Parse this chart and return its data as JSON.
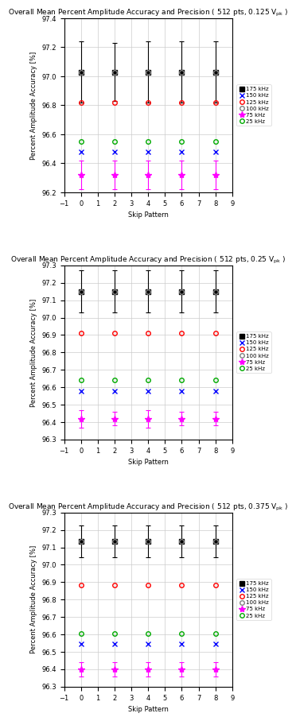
{
  "subplots": [
    {
      "title": "Overall Mean Percent Amplitude Accuracy and Precision ( 512 pts, 0.125 V",
      "title_sub": "pk",
      "title_suffix": " )",
      "ylim": [
        96.2,
        97.4
      ],
      "yticks": [
        96.2,
        96.4,
        96.6,
        96.8,
        97.0,
        97.2,
        97.4
      ],
      "series": [
        {
          "label": "175 kHz",
          "color": "#000000",
          "marker": "s",
          "markerfacecolor": "#000000",
          "x": [
            0,
            2,
            4,
            6,
            8
          ],
          "y": [
            97.03,
            97.03,
            97.03,
            97.03,
            97.03
          ],
          "yerr_low": [
            0.21,
            0.2,
            0.21,
            0.21,
            0.21
          ],
          "yerr_high": [
            0.21,
            0.2,
            0.21,
            0.21,
            0.21
          ]
        },
        {
          "label": "150 kHz",
          "color": "#0000FF",
          "marker": "x",
          "markerfacecolor": "#0000FF",
          "x": [
            0,
            2,
            4,
            6,
            8
          ],
          "y": [
            96.48,
            96.48,
            96.48,
            96.48,
            96.48
          ],
          "yerr_low": [
            0.0,
            0.0,
            0.0,
            0.0,
            0.0
          ],
          "yerr_high": [
            0.0,
            0.0,
            0.0,
            0.0,
            0.0
          ]
        },
        {
          "label": "125 kHz",
          "color": "#FF0000",
          "marker": "o",
          "markerfacecolor": "none",
          "x": [
            0,
            2,
            4,
            6,
            8
          ],
          "y": [
            96.82,
            96.82,
            96.82,
            96.82,
            96.82
          ],
          "yerr_low": [
            0.0,
            0.0,
            0.0,
            0.0,
            0.0
          ],
          "yerr_high": [
            0.0,
            0.0,
            0.0,
            0.0,
            0.0
          ]
        },
        {
          "label": "100 kHz",
          "color": "#808080",
          "marker": "o",
          "markerfacecolor": "none",
          "x": [
            0,
            2,
            4,
            6,
            8
          ],
          "y": [
            97.03,
            97.03,
            97.03,
            97.03,
            97.03
          ],
          "yerr_low": [
            0.0,
            0.0,
            0.0,
            0.0,
            0.0
          ],
          "yerr_high": [
            0.0,
            0.0,
            0.0,
            0.0,
            0.0
          ]
        },
        {
          "label": "75 kHz",
          "color": "#FF00FF",
          "marker": "*",
          "markerfacecolor": "#FF00FF",
          "x": [
            0,
            2,
            4,
            6,
            8
          ],
          "y": [
            96.32,
            96.32,
            96.32,
            96.32,
            96.32
          ],
          "yerr_low": [
            0.1,
            0.1,
            0.1,
            0.1,
            0.1
          ],
          "yerr_high": [
            0.1,
            0.1,
            0.1,
            0.1,
            0.1
          ]
        },
        {
          "label": "25 kHz",
          "color": "#00AA00",
          "marker": "o",
          "markerfacecolor": "none",
          "x": [
            0,
            2,
            4,
            6,
            8
          ],
          "y": [
            96.55,
            96.55,
            96.55,
            96.55,
            96.55
          ],
          "yerr_low": [
            0.0,
            0.0,
            0.0,
            0.0,
            0.0
          ],
          "yerr_high": [
            0.0,
            0.0,
            0.0,
            0.0,
            0.0
          ]
        }
      ]
    },
    {
      "title": "Overall Mean Percent Amplitude Accuracy and Precision ( 512 pts, 0.25 V",
      "title_sub": "pk",
      "title_suffix": " )",
      "ylim": [
        96.3,
        97.3
      ],
      "yticks": [
        96.3,
        96.4,
        96.5,
        96.6,
        96.7,
        96.8,
        96.9,
        97.0,
        97.1,
        97.2,
        97.3
      ],
      "series": [
        {
          "label": "175 kHz",
          "color": "#000000",
          "marker": "s",
          "markerfacecolor": "#000000",
          "x": [
            0,
            2,
            4,
            6,
            8
          ],
          "y": [
            97.15,
            97.15,
            97.15,
            97.15,
            97.15
          ],
          "yerr_low": [
            0.12,
            0.12,
            0.12,
            0.12,
            0.12
          ],
          "yerr_high": [
            0.12,
            0.12,
            0.12,
            0.12,
            0.12
          ]
        },
        {
          "label": "150 kHz",
          "color": "#0000FF",
          "marker": "x",
          "markerfacecolor": "#0000FF",
          "x": [
            0,
            2,
            4,
            6,
            8
          ],
          "y": [
            96.58,
            96.58,
            96.58,
            96.58,
            96.58
          ],
          "yerr_low": [
            0.0,
            0.0,
            0.0,
            0.0,
            0.0
          ],
          "yerr_high": [
            0.0,
            0.0,
            0.0,
            0.0,
            0.0
          ]
        },
        {
          "label": "125 kHz",
          "color": "#FF0000",
          "marker": "o",
          "markerfacecolor": "none",
          "x": [
            0,
            2,
            4,
            6,
            8
          ],
          "y": [
            96.91,
            96.91,
            96.91,
            96.91,
            96.91
          ],
          "yerr_low": [
            0.0,
            0.0,
            0.0,
            0.0,
            0.0
          ],
          "yerr_high": [
            0.0,
            0.0,
            0.0,
            0.0,
            0.0
          ]
        },
        {
          "label": "100 kHz",
          "color": "#808080",
          "marker": "o",
          "markerfacecolor": "none",
          "x": [
            0,
            2,
            4,
            6,
            8
          ],
          "y": [
            97.15,
            97.15,
            97.15,
            97.15,
            97.15
          ],
          "yerr_low": [
            0.0,
            0.0,
            0.0,
            0.0,
            0.0
          ],
          "yerr_high": [
            0.0,
            0.0,
            0.0,
            0.0,
            0.0
          ]
        },
        {
          "label": "75 kHz",
          "color": "#FF00FF",
          "marker": "*",
          "markerfacecolor": "#FF00FF",
          "x": [
            0,
            2,
            4,
            6,
            8
          ],
          "y": [
            96.42,
            96.42,
            96.42,
            96.42,
            96.42
          ],
          "yerr_low": [
            0.05,
            0.04,
            0.05,
            0.04,
            0.04
          ],
          "yerr_high": [
            0.05,
            0.04,
            0.05,
            0.04,
            0.04
          ]
        },
        {
          "label": "25 kHz",
          "color": "#00AA00",
          "marker": "o",
          "markerfacecolor": "none",
          "x": [
            0,
            2,
            4,
            6,
            8
          ],
          "y": [
            96.64,
            96.64,
            96.64,
            96.64,
            96.64
          ],
          "yerr_low": [
            0.0,
            0.0,
            0.0,
            0.0,
            0.0
          ],
          "yerr_high": [
            0.0,
            0.0,
            0.0,
            0.0,
            0.0
          ]
        }
      ]
    },
    {
      "title": "Overall Mean Percent Amplitude Accuracy and Precision ( 512 pts, 0.375 V",
      "title_sub": "pk",
      "title_suffix": " )",
      "ylim": [
        96.3,
        97.3
      ],
      "yticks": [
        96.3,
        96.4,
        96.5,
        96.6,
        96.7,
        96.8,
        96.9,
        97.0,
        97.1,
        97.2,
        97.3
      ],
      "series": [
        {
          "label": "175 kHz",
          "color": "#000000",
          "marker": "s",
          "markerfacecolor": "#000000",
          "x": [
            0,
            2,
            4,
            6,
            8
          ],
          "y": [
            97.135,
            97.135,
            97.135,
            97.135,
            97.135
          ],
          "yerr_low": [
            0.09,
            0.09,
            0.09,
            0.09,
            0.09
          ],
          "yerr_high": [
            0.09,
            0.09,
            0.09,
            0.09,
            0.09
          ]
        },
        {
          "label": "150 kHz",
          "color": "#0000FF",
          "marker": "x",
          "markerfacecolor": "#0000FF",
          "x": [
            0,
            2,
            4,
            6,
            8
          ],
          "y": [
            96.545,
            96.545,
            96.545,
            96.545,
            96.545
          ],
          "yerr_low": [
            0.0,
            0.0,
            0.0,
            0.0,
            0.0
          ],
          "yerr_high": [
            0.0,
            0.0,
            0.0,
            0.0,
            0.0
          ]
        },
        {
          "label": "125 kHz",
          "color": "#FF0000",
          "marker": "o",
          "markerfacecolor": "none",
          "x": [
            0,
            2,
            4,
            6,
            8
          ],
          "y": [
            96.885,
            96.885,
            96.885,
            96.885,
            96.885
          ],
          "yerr_low": [
            0.0,
            0.0,
            0.0,
            0.0,
            0.0
          ],
          "yerr_high": [
            0.0,
            0.0,
            0.0,
            0.0,
            0.0
          ]
        },
        {
          "label": "100 kHz",
          "color": "#808080",
          "marker": "o",
          "markerfacecolor": "none",
          "x": [
            0,
            2,
            4,
            6,
            8
          ],
          "y": [
            97.135,
            97.135,
            97.135,
            97.135,
            97.135
          ],
          "yerr_low": [
            0.0,
            0.0,
            0.0,
            0.0,
            0.0
          ],
          "yerr_high": [
            0.0,
            0.0,
            0.0,
            0.0,
            0.0
          ]
        },
        {
          "label": "75 kHz",
          "color": "#FF00FF",
          "marker": "*",
          "markerfacecolor": "#FF00FF",
          "x": [
            0,
            2,
            4,
            6,
            8
          ],
          "y": [
            96.4,
            96.4,
            96.4,
            96.4,
            96.4
          ],
          "yerr_low": [
            0.04,
            0.04,
            0.04,
            0.04,
            0.04
          ],
          "yerr_high": [
            0.04,
            0.04,
            0.04,
            0.04,
            0.04
          ]
        },
        {
          "label": "25 kHz",
          "color": "#00AA00",
          "marker": "o",
          "markerfacecolor": "none",
          "x": [
            0,
            2,
            4,
            6,
            8
          ],
          "y": [
            96.605,
            96.605,
            96.605,
            96.605,
            96.605
          ],
          "yerr_low": [
            0.0,
            0.0,
            0.0,
            0.0,
            0.0
          ],
          "yerr_high": [
            0.0,
            0.0,
            0.0,
            0.0,
            0.0
          ]
        }
      ]
    }
  ],
  "xlabel": "Skip Pattern",
  "ylabel": "Percent Amplitude Accuracy [%]",
  "xlim": [
    -1,
    9
  ],
  "xticks": [
    -1,
    0,
    1,
    2,
    3,
    4,
    5,
    6,
    7,
    8,
    9
  ],
  "legend_labels": [
    "175 kHz",
    "150 kHz",
    "125 kHz",
    "100 kHz",
    "75 kHz",
    "25 kHz"
  ],
  "legend_colors": [
    "#000000",
    "#0000FF",
    "#FF0000",
    "#808080",
    "#FF00FF",
    "#00AA00"
  ],
  "legend_markers": [
    "s",
    "x",
    "o",
    "o",
    "*",
    "o"
  ],
  "legend_mfc": [
    "#000000",
    "#0000FF",
    "none",
    "none",
    "#FF00FF",
    "none"
  ],
  "background_color": "#ffffff",
  "grid_color": "#cccccc"
}
